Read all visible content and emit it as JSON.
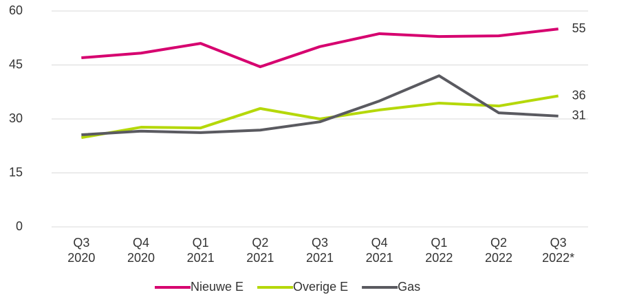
{
  "chart_data": {
    "type": "line",
    "categories": [
      "Q3 2020",
      "Q4 2020",
      "Q1 2021",
      "Q2 2021",
      "Q3 2021",
      "Q4 2021",
      "Q1 2022",
      "Q2 2022",
      "Q3 2022*"
    ],
    "series": [
      {
        "name": "Nieuwe E",
        "color": "#d6006f",
        "values": [
          47.0,
          48.3,
          51.0,
          44.5,
          50.1,
          53.7,
          52.9,
          53.1,
          55.0
        ],
        "value_labels": [
          null,
          null,
          null,
          null,
          null,
          null,
          null,
          null,
          "55"
        ]
      },
      {
        "name": "Overige E",
        "color": "#b5d80a",
        "values": [
          24.8,
          27.7,
          27.5,
          32.9,
          30.0,
          32.5,
          34.4,
          33.6,
          36.4
        ],
        "value_labels": [
          null,
          null,
          null,
          null,
          null,
          null,
          null,
          null,
          "36"
        ]
      },
      {
        "name": "Gas",
        "color": "#5a5a60",
        "values": [
          25.6,
          26.6,
          26.2,
          26.9,
          29.2,
          35.0,
          42.0,
          31.7,
          30.8
        ],
        "value_labels": [
          null,
          null,
          null,
          null,
          null,
          null,
          null,
          null,
          "31"
        ]
      }
    ],
    "ylim": [
      0,
      60
    ],
    "yticks": [
      0,
      15,
      30,
      45,
      60
    ],
    "grid": true,
    "legend": "bottom"
  }
}
